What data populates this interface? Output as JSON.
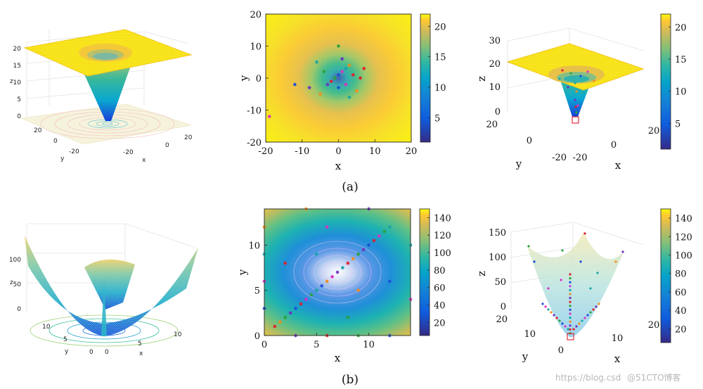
{
  "captions": {
    "a": "(a)",
    "b": "(b)"
  },
  "watermark": {
    "left": "https://blog.csd",
    "right": "@51CTO博客"
  },
  "colors": {
    "parula_low": "#352a87",
    "parula_mid": "#17b2a0",
    "parula_high": "#f9fb0e",
    "marker_red": "#e11d2b"
  },
  "chart_data": [
    {
      "id": "a-left",
      "type": "surface3d",
      "xlabel": "x",
      "ylabel": "y",
      "zlabel": "z",
      "xticks": [
        "-20",
        "0",
        "20"
      ],
      "yticks": [
        "20",
        "0",
        "-20"
      ],
      "zticks": [
        "0",
        "5",
        "10",
        "15",
        "20"
      ],
      "zlim": [
        0,
        20
      ]
    },
    {
      "id": "a-mid",
      "type": "heatmap",
      "xlabel": "x",
      "ylabel": "y",
      "xticks": [
        "-20",
        "-10",
        "0",
        "10",
        "20"
      ],
      "yticks": [
        "20",
        "10",
        "0",
        "-10",
        "-20"
      ],
      "xlim": [
        -20,
        20
      ],
      "ylim": [
        -20,
        20
      ],
      "colorbar": {
        "ticks": [
          "20",
          "15",
          "10",
          "5"
        ],
        "range": [
          1,
          22
        ]
      },
      "points": [
        [
          -2,
          -1
        ],
        [
          -1,
          0
        ],
        [
          0,
          1
        ],
        [
          1,
          2
        ],
        [
          2,
          3
        ],
        [
          3,
          4
        ],
        [
          -3,
          -2
        ],
        [
          4,
          1
        ],
        [
          -4,
          2
        ],
        [
          0,
          -3
        ],
        [
          2,
          -2
        ],
        [
          -6,
          5
        ],
        [
          5,
          -4
        ],
        [
          -8,
          -3
        ],
        [
          7,
          3
        ],
        [
          0,
          10
        ],
        [
          -12,
          -2
        ],
        [
          -19,
          -12
        ],
        [
          3,
          -6
        ],
        [
          -5,
          -5
        ],
        [
          1,
          6
        ],
        [
          6,
          0
        ]
      ]
    },
    {
      "id": "a-right",
      "type": "surface3d",
      "xlabel": "x",
      "ylabel": "y",
      "zlabel": "z",
      "xticks": [
        "-20",
        "0",
        "20"
      ],
      "yticks": [
        "20",
        "0",
        "-20"
      ],
      "zticks": [
        "30",
        "20",
        "10",
        "0"
      ],
      "zlim": [
        0,
        30
      ],
      "colorbar": {
        "ticks": [
          "20",
          "15",
          "10",
          "5"
        ],
        "range": [
          1,
          22
        ]
      }
    },
    {
      "id": "b-left",
      "type": "mesh3d",
      "xlabel": "x",
      "ylabel": "y",
      "zlabel": "z",
      "xticks": [
        "0",
        "5",
        "10"
      ],
      "yticks": [
        "10",
        "5",
        "0"
      ],
      "zticks": [
        "100",
        "50",
        "0"
      ],
      "zlim": [
        0,
        150
      ]
    },
    {
      "id": "b-mid",
      "type": "heatmap",
      "xlabel": "x",
      "ylabel": "y",
      "xticks": [
        "0",
        "5",
        "10"
      ],
      "yticks": [
        "10",
        "5",
        "0"
      ],
      "xlim": [
        0,
        14
      ],
      "ylim": [
        0,
        14
      ],
      "colorbar": {
        "ticks": [
          "140",
          "120",
          "100",
          "80",
          "60",
          "40",
          "20"
        ],
        "range": [
          5,
          150
        ]
      },
      "points": [
        [
          1,
          1
        ],
        [
          2,
          2
        ],
        [
          3,
          3
        ],
        [
          4,
          4
        ],
        [
          5,
          5
        ],
        [
          6,
          6
        ],
        [
          7,
          7
        ],
        [
          8,
          8
        ],
        [
          9,
          9
        ],
        [
          10,
          10
        ],
        [
          11,
          11
        ],
        [
          12,
          12
        ],
        [
          1.5,
          1.5
        ],
        [
          2.5,
          2.5
        ],
        [
          3.5,
          3.5
        ],
        [
          4.5,
          4.5
        ],
        [
          5.5,
          5.5
        ],
        [
          6.5,
          6.5
        ],
        [
          7.5,
          7.5
        ],
        [
          8.5,
          8.5
        ],
        [
          9.5,
          9.5
        ],
        [
          10.5,
          10.5
        ],
        [
          11.5,
          11.5
        ],
        [
          0,
          3
        ],
        [
          0,
          6
        ],
        [
          0,
          9
        ],
        [
          0,
          12
        ],
        [
          3,
          0
        ],
        [
          6,
          0
        ],
        [
          9,
          0
        ],
        [
          12,
          0
        ],
        [
          14,
          4
        ],
        [
          14,
          10
        ],
        [
          4,
          14
        ],
        [
          10,
          14
        ],
        [
          2,
          8
        ],
        [
          8,
          2
        ],
        [
          12,
          6
        ],
        [
          6,
          12
        ],
        [
          5,
          9
        ],
        [
          9,
          5
        ]
      ]
    },
    {
      "id": "b-right",
      "type": "surface3d",
      "xlabel": "x",
      "ylabel": "y",
      "zlabel": "z",
      "xticks": [
        "10",
        "20"
      ],
      "yticks": [
        "20",
        "10",
        "0"
      ],
      "zticks": [
        "150",
        "100",
        "50",
        "0"
      ],
      "zlim": [
        0,
        150
      ],
      "colorbar": {
        "ticks": [
          "140",
          "120",
          "100",
          "80",
          "60",
          "40",
          "20"
        ],
        "range": [
          5,
          150
        ]
      }
    }
  ]
}
